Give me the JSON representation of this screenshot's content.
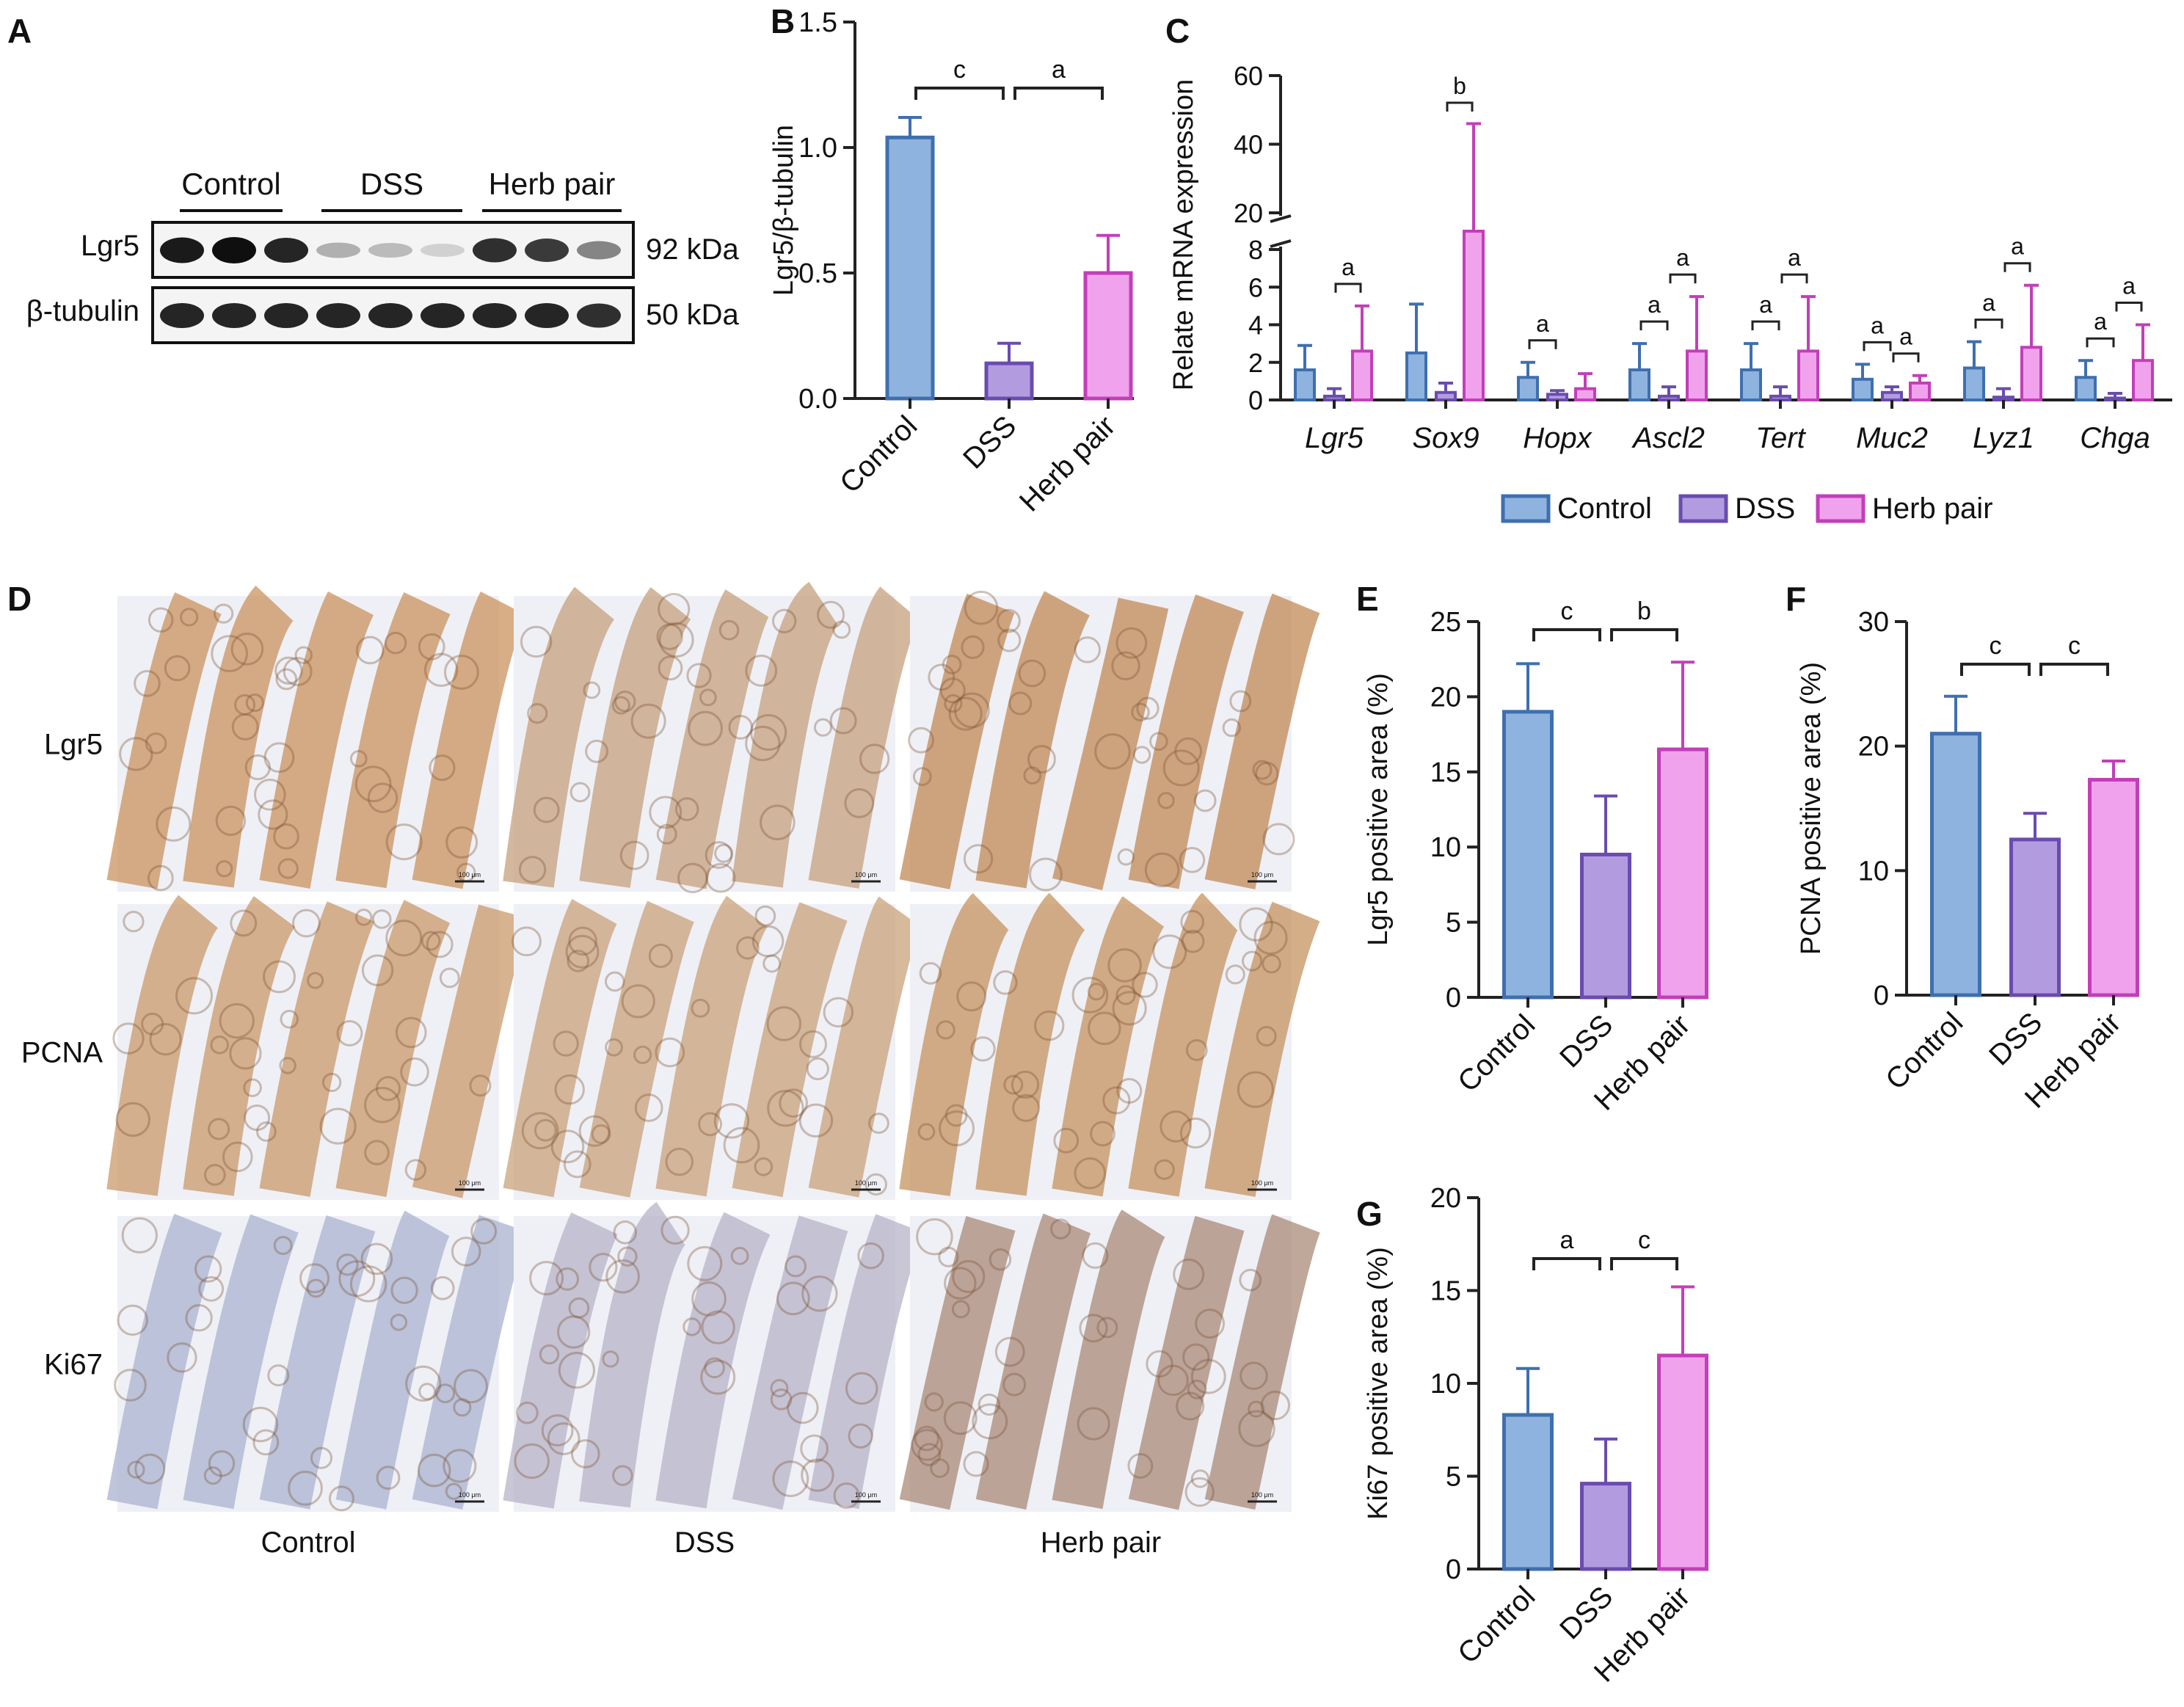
{
  "colors": {
    "control_fill": "#8fb3df",
    "control_stroke": "#3f6fae",
    "dss_fill": "#b39be0",
    "dss_stroke": "#6a4cae",
    "herb_fill": "#f0a2ec",
    "herb_stroke": "#c23fb8",
    "axis": "#222222"
  },
  "panel_letters": {
    "A": "A",
    "B": "B",
    "C": "C",
    "D": "D",
    "E": "E",
    "F": "F",
    "G": "G"
  },
  "blot": {
    "groups": [
      "Control",
      "DSS",
      "Herb pair"
    ],
    "rows": [
      {
        "label": "Lgr5",
        "kda": "92 kDa",
        "intensity": [
          0.95,
          1.0,
          0.9,
          0.25,
          0.2,
          0.1,
          0.85,
          0.8,
          0.45
        ]
      },
      {
        "label": "β-tubulin",
        "kda": "50 kDa",
        "intensity": [
          0.9,
          0.9,
          0.9,
          0.9,
          0.9,
          0.9,
          0.9,
          0.9,
          0.85
        ]
      }
    ]
  },
  "histology": {
    "rows": [
      "Lgr5",
      "PCNA",
      "Ki67"
    ],
    "cols": [
      "Control",
      "DSS",
      "Herb pair"
    ],
    "scale_bar": "100 μm"
  },
  "chart_data": [
    {
      "panel": "B",
      "type": "bar",
      "categories": [
        "Control",
        "DSS",
        "Herb pair"
      ],
      "values": [
        1.04,
        0.14,
        0.5
      ],
      "errors": [
        0.08,
        0.08,
        0.15
      ],
      "ylabel": "Lgr5/β-tubulin",
      "ylim": [
        0,
        1.5
      ],
      "yticks": [
        "0.0",
        "0.5",
        "1.0",
        "1.5"
      ],
      "significance": [
        {
          "from": 0,
          "to": 1,
          "label": "c"
        },
        {
          "from": 1,
          "to": 2,
          "label": "a"
        }
      ]
    },
    {
      "panel": "C",
      "type": "bar",
      "categories": [
        "Lgr5",
        "Sox9",
        "Hopx",
        "Ascl2",
        "Tert",
        "Muc2",
        "Lyz1",
        "Chga"
      ],
      "series": [
        {
          "name": "Control",
          "values": [
            1.6,
            2.5,
            1.2,
            1.6,
            1.6,
            1.1,
            1.7,
            1.2
          ],
          "errors": [
            1.3,
            2.6,
            0.8,
            1.4,
            1.4,
            0.8,
            1.4,
            0.9
          ]
        },
        {
          "name": "DSS",
          "values": [
            0.2,
            0.4,
            0.3,
            0.2,
            0.2,
            0.4,
            0.15,
            0.1
          ],
          "errors": [
            0.4,
            0.5,
            0.2,
            0.5,
            0.5,
            0.3,
            0.45,
            0.25
          ]
        },
        {
          "name": "Herb pair",
          "values": [
            2.6,
            19,
            0.6,
            2.6,
            2.6,
            0.9,
            2.8,
            2.1
          ],
          "errors": [
            2.4,
            27,
            0.8,
            2.9,
            2.9,
            0.4,
            3.3,
            1.9
          ]
        }
      ],
      "ylabel": "Relate mRNA expression",
      "y_lower_ticks": [
        "0",
        "2",
        "4",
        "6",
        "8"
      ],
      "y_upper_ticks": [
        "20",
        "40",
        "60"
      ],
      "y_break": [
        8,
        20
      ],
      "significance": [
        {
          "cat": 0,
          "from": 1,
          "to": 2,
          "label": "a"
        },
        {
          "cat": 1,
          "from": 1,
          "to": 2,
          "label": "b"
        },
        {
          "cat": 2,
          "from": 0,
          "to": 1,
          "label": "a"
        },
        {
          "cat": 3,
          "from": 0,
          "to": 1,
          "label": "a"
        },
        {
          "cat": 3,
          "from": 1,
          "to": 2,
          "label": "a"
        },
        {
          "cat": 4,
          "from": 0,
          "to": 1,
          "label": "a"
        },
        {
          "cat": 4,
          "from": 1,
          "to": 2,
          "label": "a"
        },
        {
          "cat": 5,
          "from": 0,
          "to": 1,
          "label": "a"
        },
        {
          "cat": 5,
          "from": 1,
          "to": 2,
          "label": "a"
        },
        {
          "cat": 6,
          "from": 0,
          "to": 1,
          "label": "a"
        },
        {
          "cat": 6,
          "from": 1,
          "to": 2,
          "label": "a"
        },
        {
          "cat": 7,
          "from": 0,
          "to": 1,
          "label": "a"
        },
        {
          "cat": 7,
          "from": 1,
          "to": 2,
          "label": "a"
        }
      ],
      "legend": [
        "Control",
        "DSS",
        "Herb pair"
      ]
    },
    {
      "panel": "E",
      "type": "bar",
      "categories": [
        "Control",
        "DSS",
        "Herb pair"
      ],
      "values": [
        19,
        9.5,
        16.5
      ],
      "errors": [
        3.2,
        3.9,
        5.8
      ],
      "ylabel": "Lgr5 positive area (%)",
      "ylim": [
        0,
        25
      ],
      "yticks": [
        "0",
        "5",
        "10",
        "15",
        "20",
        "25"
      ],
      "significance": [
        {
          "from": 0,
          "to": 1,
          "label": "c"
        },
        {
          "from": 1,
          "to": 2,
          "label": "b"
        }
      ]
    },
    {
      "panel": "F",
      "type": "bar",
      "categories": [
        "Control",
        "DSS",
        "Herb pair"
      ],
      "values": [
        21,
        12.5,
        17.3
      ],
      "errors": [
        3,
        2.1,
        1.5
      ],
      "ylabel": "PCNA positive area (%)",
      "ylim": [
        0,
        30
      ],
      "yticks": [
        "0",
        "10",
        "20",
        "30"
      ],
      "significance": [
        {
          "from": 0,
          "to": 1,
          "label": "c"
        },
        {
          "from": 1,
          "to": 2,
          "label": "c"
        }
      ]
    },
    {
      "panel": "G",
      "type": "bar",
      "categories": [
        "Control",
        "DSS",
        "Herb pair"
      ],
      "values": [
        8.3,
        4.6,
        11.5
      ],
      "errors": [
        2.5,
        2.4,
        3.7
      ],
      "ylabel": "Ki67 positive area (%)",
      "ylim": [
        0,
        20
      ],
      "yticks": [
        "0",
        "5",
        "10",
        "15",
        "20"
      ],
      "significance": [
        {
          "from": 0,
          "to": 1,
          "label": "a"
        },
        {
          "from": 1,
          "to": 2,
          "label": "c"
        }
      ]
    }
  ]
}
